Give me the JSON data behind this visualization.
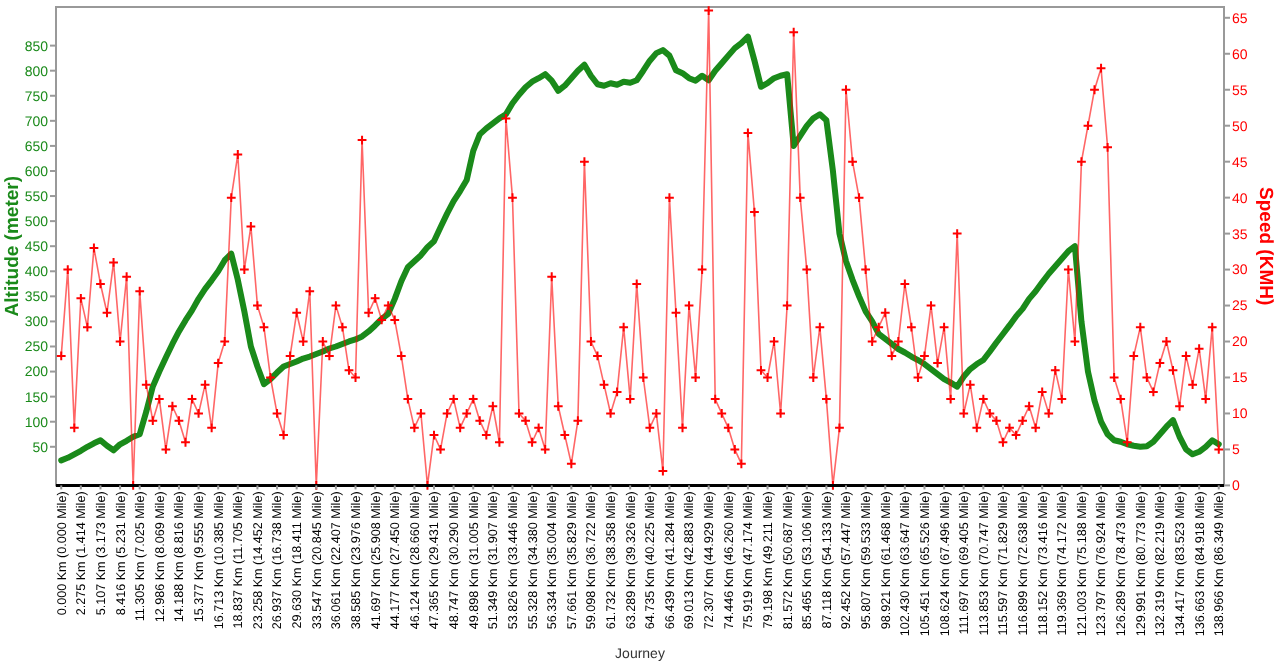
{
  "chart_data": {
    "type": "line",
    "xlabel": "Journey",
    "ylabel": "Altitude (meter)",
    "y2label": "Speed (KMH)",
    "categories": [
      "0.000 Km (0.000 Mile)",
      null,
      null,
      "2.275 Km (1.414 Mile)",
      null,
      null,
      "5.107 Km (3.173 Mile)",
      null,
      null,
      "8.416 Km (5.231 Mile)",
      null,
      null,
      "11.305 Km (7.025 Mile)",
      null,
      null,
      "12.986 Km (8.069 Mile)",
      null,
      null,
      "14.188 Km (8.816 Mile)",
      null,
      null,
      "15.377 Km (9.555 Mile)",
      null,
      null,
      "16.713 Km (10.385 Mile)",
      null,
      null,
      "18.837 Km (11.705 Mile)",
      null,
      null,
      "23.258 Km (14.452 Mile)",
      null,
      null,
      "26.937 Km (16.738 Mile)",
      null,
      null,
      "29.630 Km (18.411 Mile)",
      null,
      null,
      "33.547 Km (20.845 Mile)",
      null,
      null,
      "36.061 Km (22.407 Mile)",
      null,
      null,
      "38.585 Km (23.976 Mile)",
      null,
      null,
      "41.697 Km (25.908 Mile)",
      null,
      null,
      "44.177 Km (27.450 Mile)",
      null,
      null,
      "46.124 Km (28.660 Mile)",
      null,
      null,
      "47.365 Km (29.431 Mile)",
      null,
      null,
      "48.747 Km (30.290 Mile)",
      null,
      null,
      "49.898 Km (31.005 Mile)",
      null,
      null,
      "51.349 Km (31.907 Mile)",
      null,
      null,
      "53.826 Km (33.446 Mile)",
      null,
      null,
      "55.328 Km (34.380 Mile)",
      null,
      null,
      "56.334 Km (35.004 Mile)",
      null,
      null,
      "57.661 Km (35.829 Mile)",
      null,
      null,
      "59.098 Km (36.722 Mile)",
      null,
      null,
      "61.732 Km (38.358 Mile)",
      null,
      null,
      "63.289 Km (39.326 Mile)",
      null,
      null,
      "64.735 Km (40.225 Mile)",
      null,
      null,
      "66.439 Km (41.284 Mile)",
      null,
      null,
      "69.013 Km (42.883 Mile)",
      null,
      null,
      "72.307 Km (44.929 Mile)",
      null,
      null,
      "74.446 Km (46.260 Mile)",
      null,
      null,
      "75.919 Km (47.174 Mile)",
      null,
      null,
      "79.198 Km (49.211 Mile)",
      null,
      null,
      "81.572 Km (50.687 Mile)",
      null,
      null,
      "85.465 Km (53.106 Mile)",
      null,
      null,
      "87.118 Km (54.133 Mile)",
      null,
      null,
      "92.452 Km (57.447 Mile)",
      null,
      null,
      "95.807 Km (59.533 Mile)",
      null,
      null,
      "98.921 Km (61.468 Mile)",
      null,
      null,
      "102.430 Km (63.647 Mile)",
      null,
      null,
      "105.451 Km (65.526 Mile)",
      null,
      null,
      "108.624 Km (67.496 Mile)",
      null,
      null,
      "111.697 Km (69.405 Mile)",
      null,
      null,
      "113.853 Km (70.747 Mile)",
      null,
      null,
      "115.597 Km (71.829 Mile)",
      null,
      null,
      "116.899 Km (72.638 Mile)",
      null,
      null,
      "118.152 Km (73.416 Mile)",
      null,
      null,
      "119.369 Km (74.172 Mile)",
      null,
      null,
      "121.003 Km (75.188 Mile)",
      null,
      null,
      "123.797 Km (76.924 Mile)",
      null,
      null,
      "126.289 Km (78.473 Mile)",
      null,
      null,
      "129.991 Km (80.773 Mile)",
      null,
      null,
      "132.319 Km (82.219 Mile)",
      null,
      null,
      "134.417 Km (83.523 Mile)",
      null,
      null,
      "136.663 Km (84.918 Mile)",
      null,
      null,
      "138.966 Km (86.349 Mile)"
    ],
    "ylim": [
      -27,
      927
    ],
    "yticks": [
      50,
      100,
      150,
      200,
      250,
      300,
      350,
      400,
      450,
      500,
      550,
      600,
      650,
      700,
      750,
      800,
      850
    ],
    "y2lim": [
      0,
      66.5
    ],
    "y2ticks": [
      0,
      5,
      10,
      15,
      20,
      25,
      30,
      35,
      40,
      45,
      50,
      55,
      60,
      65
    ],
    "grid": false,
    "series": [
      {
        "color": "#1a8a1a",
        "marker": "none",
        "values": [
          23,
          28,
          35,
          42,
          50,
          57,
          63,
          52,
          43,
          55,
          62,
          70,
          75,
          120,
          170,
          200,
          228,
          255,
          280,
          302,
          322,
          345,
          365,
          382,
          400,
          422,
          435,
          383,
          320,
          250,
          210,
          175,
          185,
          198,
          210,
          215,
          220,
          226,
          230,
          235,
          240,
          246,
          250,
          255,
          260,
          264,
          270,
          280,
          292,
          305,
          315,
          345,
          380,
          408,
          420,
          432,
          448,
          460,
          488,
          515,
          540,
          560,
          582,
          640,
          673,
          685,
          695,
          705,
          713,
          735,
          752,
          767,
          778,
          785,
          793,
          780,
          760,
          770,
          785,
          800,
          812,
          790,
          773,
          770,
          775,
          772,
          778,
          776,
          781,
          800,
          820,
          835,
          841,
          830,
          801,
          795,
          785,
          780,
          790,
          781,
          800,
          815,
          830,
          845,
          855,
          868,
          820,
          768,
          775,
          785,
          790,
          793,
          650,
          670,
          690,
          705,
          713,
          701,
          600,
          475,
          420,
          383,
          350,
          320,
          300,
          275,
          265,
          255,
          245,
          238,
          230,
          223,
          215,
          205,
          195,
          185,
          178,
          170,
          190,
          205,
          215,
          223,
          240,
          258,
          275,
          292,
          310,
          325,
          345,
          360,
          378,
          395,
          410,
          425,
          440,
          450,
          300,
          200,
          142,
          100,
          75,
          63,
          60,
          55,
          52,
          50,
          51,
          60,
          75,
          90,
          103,
          70,
          45,
          35,
          40,
          50,
          63,
          55
        ]
      },
      {
        "color": "#ff0000",
        "axis": "y2",
        "marker": "cross",
        "values": [
          18,
          30,
          8,
          26,
          22,
          33,
          28,
          24,
          31,
          20,
          29,
          0,
          27,
          14,
          9,
          12,
          5,
          11,
          9,
          6,
          12,
          10,
          14,
          8,
          17,
          20,
          40,
          46,
          30,
          36,
          25,
          22,
          15,
          10,
          7,
          18,
          24,
          20,
          27,
          0,
          20,
          18,
          25,
          22,
          16,
          15,
          48,
          24,
          26,
          23,
          25,
          23,
          18,
          12,
          8,
          10,
          0,
          7,
          5,
          10,
          12,
          8,
          10,
          12,
          9,
          7,
          11,
          6,
          51,
          40,
          10,
          9,
          6,
          8,
          5,
          29,
          11,
          7,
          3,
          9,
          45,
          20,
          18,
          14,
          10,
          13,
          22,
          12,
          28,
          15,
          8,
          10,
          2,
          40,
          24,
          8,
          25,
          15,
          30,
          66,
          12,
          10,
          8,
          5,
          3,
          49,
          38,
          16,
          15,
          20,
          10,
          25,
          63,
          40,
          30,
          15,
          22,
          12,
          0,
          8,
          55,
          45,
          40,
          30,
          20,
          22,
          24,
          18,
          20,
          28,
          22,
          15,
          18,
          25,
          17,
          22,
          12,
          35,
          10,
          14,
          8,
          12,
          10,
          9,
          6,
          8,
          7,
          9,
          11,
          8,
          13,
          10,
          16,
          12,
          30,
          20,
          45,
          50,
          55,
          58,
          47,
          15,
          12,
          6,
          18,
          22,
          15,
          13,
          17,
          20,
          16,
          11,
          18,
          14,
          19,
          12,
          22,
          5
        ]
      }
    ]
  }
}
